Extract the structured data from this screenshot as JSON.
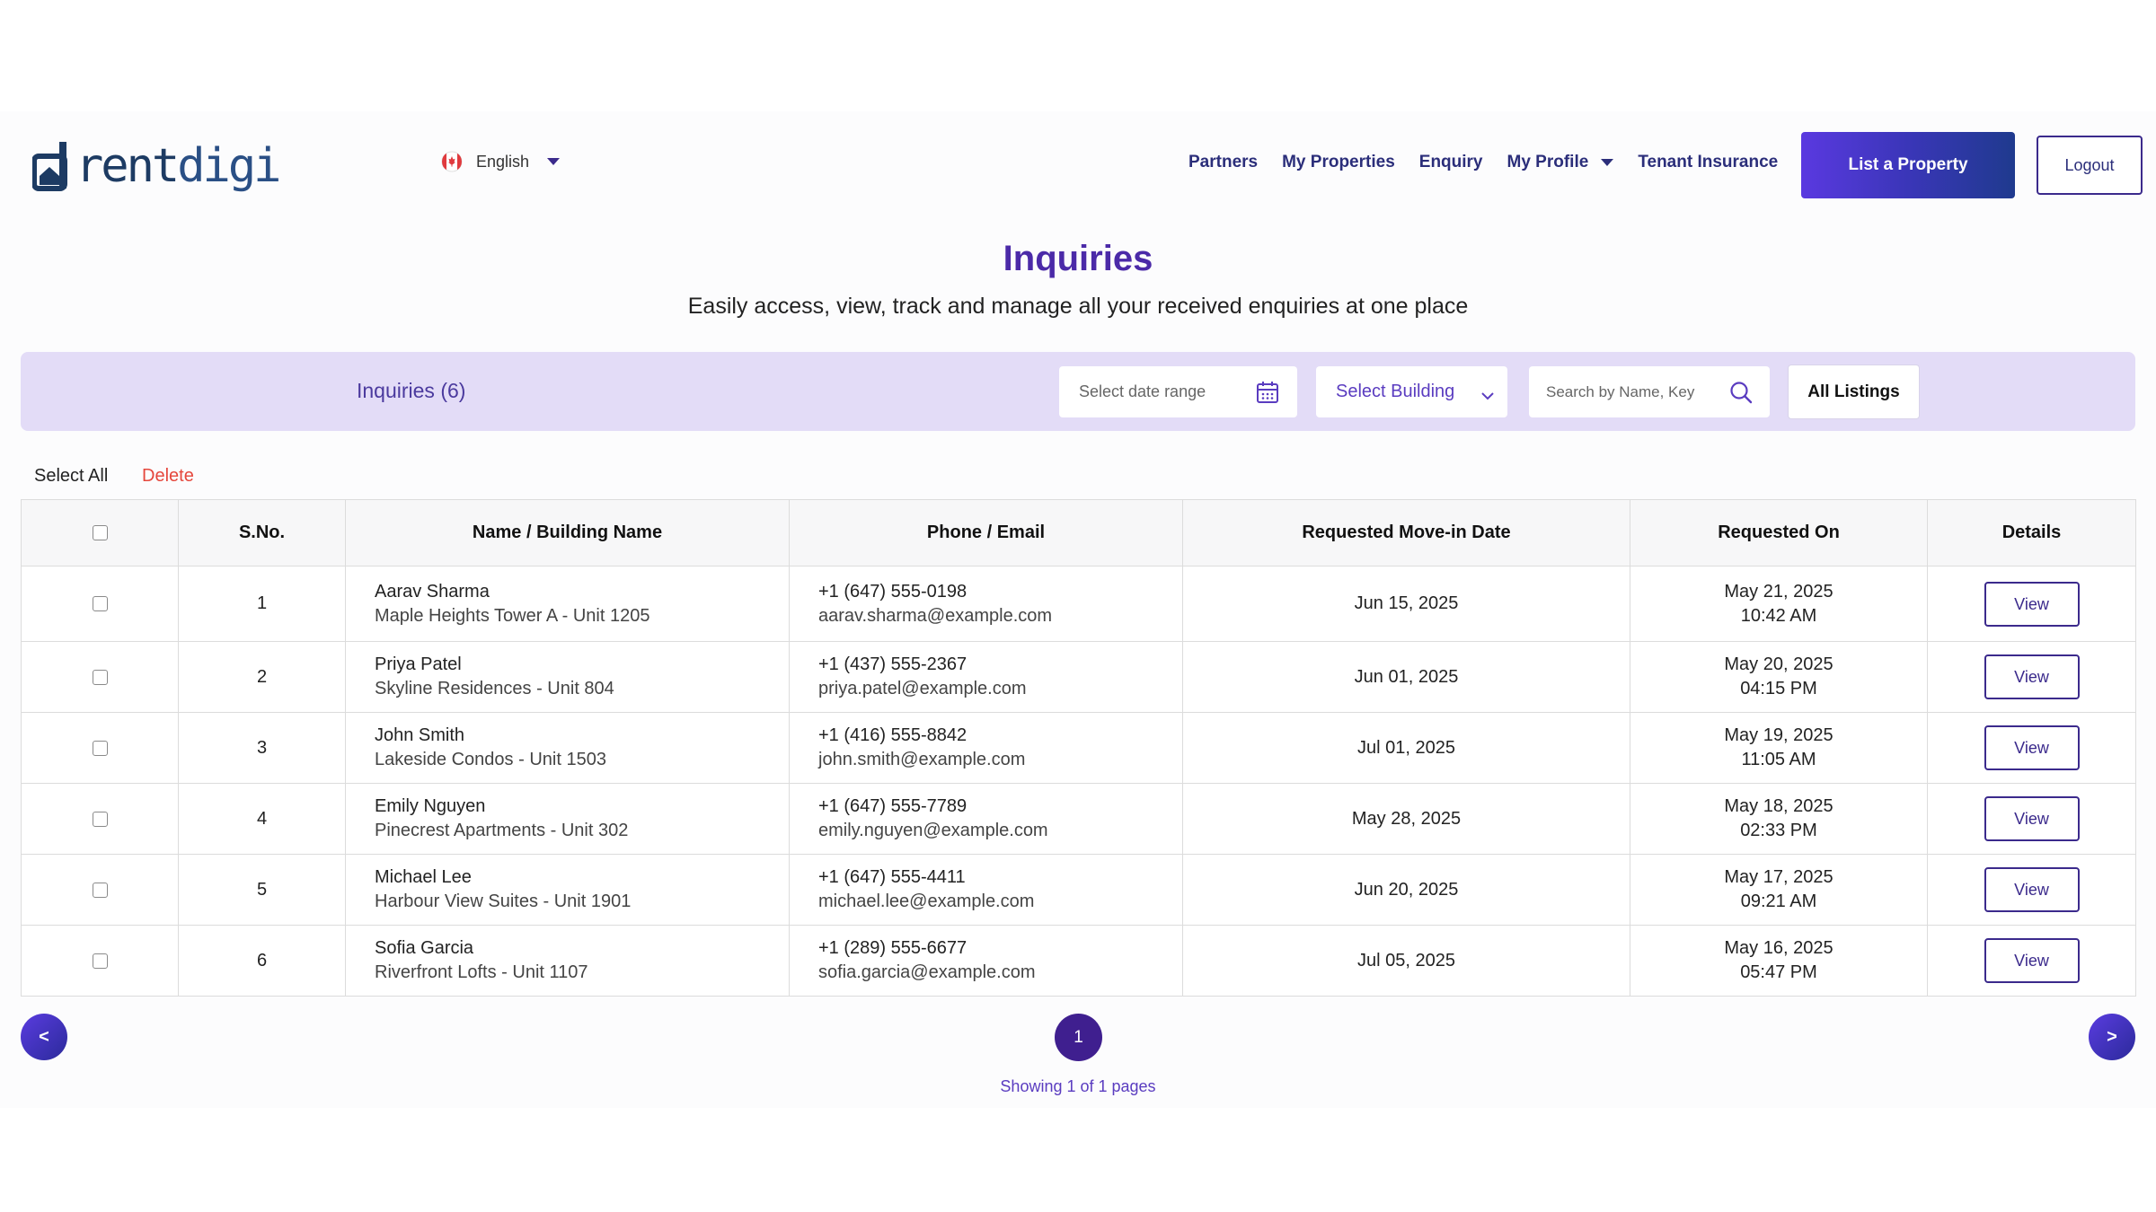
{
  "header": {
    "logo_text_a": "rent",
    "logo_text_b": "digi",
    "language": "English",
    "nav": [
      {
        "label": "Partners"
      },
      {
        "label": "My Properties"
      },
      {
        "label": "Enquiry"
      },
      {
        "label": "My Profile",
        "has_dropdown": true
      },
      {
        "label": "Tenant Insurance"
      }
    ],
    "list_property_label": "List a Property",
    "logout_label": "Logout"
  },
  "page": {
    "title": "Inquiries",
    "subtitle": "Easily access, view, track and manage all your received enquiries at one place"
  },
  "filters": {
    "title": "Inquiries (6)",
    "date_placeholder": "Select date range",
    "building_label": "Select Building",
    "search_placeholder": "Search by Name, Key",
    "all_listings_label": "All Listings"
  },
  "actions": {
    "select_all": "Select All",
    "delete": "Delete"
  },
  "table": {
    "columns": [
      "S.No.",
      "Name / Building Name",
      "Phone / Email",
      "Requested Move-in Date",
      "Requested On",
      "Details"
    ],
    "rows": [
      {
        "sno": "1",
        "name": "Aarav Sharma",
        "building": "Maple Heights Tower A - Unit 1205",
        "phone": "+1 (647) 555-0198",
        "email": "aarav.sharma@example.com",
        "move_in": "Jun 15, 2025",
        "req_date": "May 21, 2025",
        "req_time": "10:42 AM",
        "action": "View"
      },
      {
        "sno": "2",
        "name": "Priya Patel",
        "building": "Skyline Residences - Unit 804",
        "phone": "+1 (437) 555-2367",
        "email": "priya.patel@example.com",
        "move_in": "Jun 01, 2025",
        "req_date": "May 20, 2025",
        "req_time": "04:15 PM",
        "action": "View"
      },
      {
        "sno": "3",
        "name": "John Smith",
        "building": "Lakeside Condos - Unit 1503",
        "phone": "+1 (416) 555-8842",
        "email": "john.smith@example.com",
        "move_in": "Jul 01, 2025",
        "req_date": "May 19, 2025",
        "req_time": "11:05 AM",
        "action": "View"
      },
      {
        "sno": "4",
        "name": "Emily Nguyen",
        "building": "Pinecrest Apartments - Unit 302",
        "phone": "+1 (647) 555-7789",
        "email": "emily.nguyen@example.com",
        "move_in": "May 28, 2025",
        "req_date": "May 18, 2025",
        "req_time": "02:33 PM",
        "action": "View"
      },
      {
        "sno": "5",
        "name": "Michael Lee",
        "building": "Harbour View Suites - Unit 1901",
        "phone": "+1 (647) 555-4411",
        "email": "michael.lee@example.com",
        "move_in": "Jun 20, 2025",
        "req_date": "May 17, 2025",
        "req_time": "09:21 AM",
        "action": "View"
      },
      {
        "sno": "6",
        "name": "Sofia Garcia",
        "building": "Riverfront Lofts - Unit 1107",
        "phone": "+1 (289) 555-6677",
        "email": "sofia.garcia@example.com",
        "move_in": "Jul 05, 2025",
        "req_date": "May 16, 2025",
        "req_time": "05:47 PM",
        "action": "View"
      }
    ]
  },
  "pagination": {
    "prev": "<",
    "next": ">",
    "current": "1",
    "info": "Showing 1 of 1 pages"
  },
  "icons": {
    "flag": "canada-flag-icon",
    "language_caret": "caret-down-icon",
    "calendar": "calendar-icon",
    "building_chevron": "chevron-down-icon",
    "search": "search-icon"
  },
  "colors": {
    "brand_purple": "#4b2aa8",
    "nav_text": "#2b2e7a",
    "filter_bar_bg": "#e3dcf7",
    "delete_red": "#e5473c",
    "page_active": "#3f1f8f"
  }
}
